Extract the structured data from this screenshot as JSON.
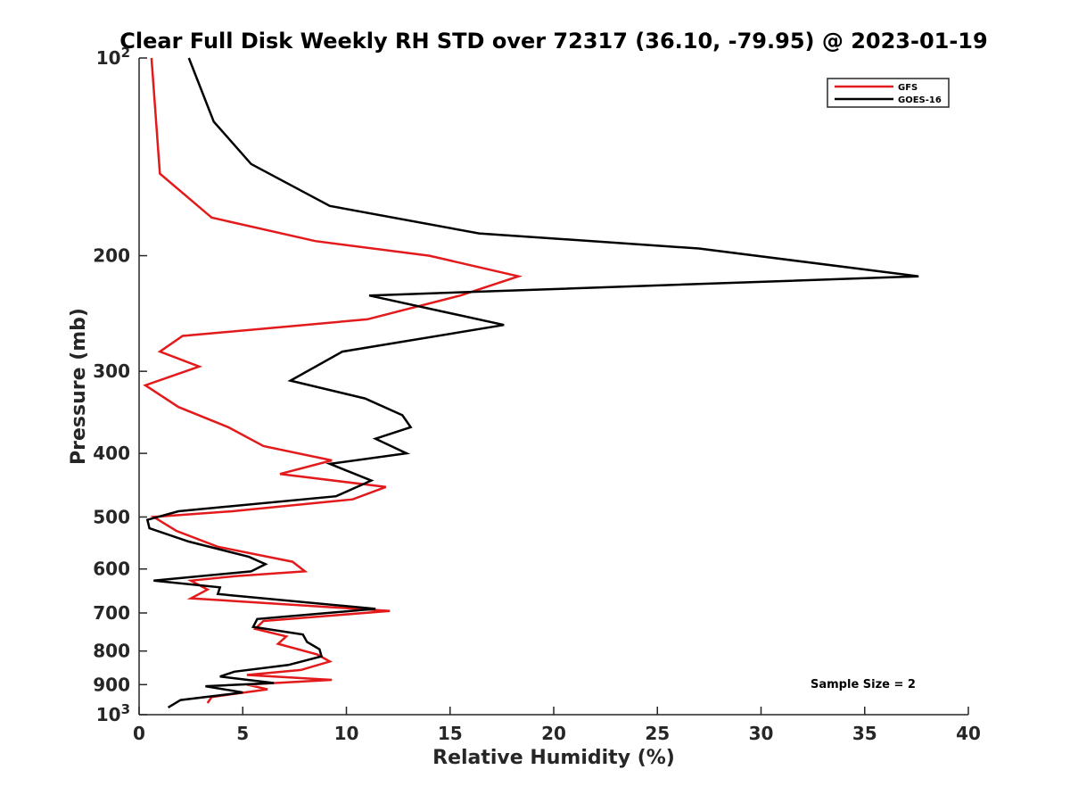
{
  "chart_data": {
    "type": "line",
    "title": "Clear Full Disk Weekly RH STD over 72317 (36.10, -79.95) @ 2023-01-19",
    "xlabel": "Relative Humidity (%)",
    "ylabel": "Pressure (mb)",
    "xlim": [
      0,
      40
    ],
    "ylim": [
      100,
      1000
    ],
    "yscale": "log",
    "y_reversed": true,
    "grid": false,
    "legend_position": "top-right",
    "x_ticks": [
      0,
      5,
      10,
      15,
      20,
      25,
      30,
      35,
      40
    ],
    "y_ticks": [
      100,
      200,
      300,
      400,
      500,
      600,
      700,
      800,
      900,
      1000
    ],
    "y_tick_labels": [
      "10^2",
      "200",
      "300",
      "400",
      "500",
      "600",
      "700",
      "800",
      "900",
      "10^3"
    ],
    "annotation": "Sample Size = 2",
    "series": [
      {
        "name": "GFS",
        "color": "#e31a1c",
        "points": [
          [
            0.6,
            100
          ],
          [
            1.0,
            150
          ],
          [
            3.5,
            175
          ],
          [
            8.5,
            190
          ],
          [
            14,
            200
          ],
          [
            18.3,
            215
          ],
          [
            15.5,
            230
          ],
          [
            11,
            250
          ],
          [
            2.1,
            265
          ],
          [
            1.0,
            280
          ],
          [
            2.9,
            295
          ],
          [
            0.3,
            315
          ],
          [
            1.9,
            340
          ],
          [
            4.3,
            365
          ],
          [
            6.0,
            390
          ],
          [
            9.3,
            410
          ],
          [
            6.8,
            430
          ],
          [
            11.9,
            450
          ],
          [
            10.3,
            470
          ],
          [
            4.5,
            490
          ],
          [
            0.7,
            500
          ],
          [
            1.8,
            525
          ],
          [
            3.8,
            555
          ],
          [
            7.4,
            585
          ],
          [
            8.0,
            605
          ],
          [
            4.7,
            615
          ],
          [
            2.5,
            625
          ],
          [
            3.3,
            645
          ],
          [
            2.5,
            665
          ],
          [
            12.1,
            695
          ],
          [
            6.0,
            720
          ],
          [
            5.6,
            740
          ],
          [
            7.1,
            760
          ],
          [
            6.7,
            780
          ],
          [
            8.6,
            810
          ],
          [
            9.2,
            830
          ],
          [
            7.8,
            855
          ],
          [
            5.2,
            870
          ],
          [
            9.3,
            885
          ],
          [
            5.2,
            900
          ],
          [
            6.2,
            915
          ],
          [
            3.5,
            940
          ],
          [
            3.3,
            960
          ]
        ]
      },
      {
        "name": "GOES-16",
        "color": "#000000",
        "points": [
          [
            2.4,
            100
          ],
          [
            3.6,
            125
          ],
          [
            5.4,
            145
          ],
          [
            9.2,
            168
          ],
          [
            16.4,
            185
          ],
          [
            27,
            195
          ],
          [
            37.6,
            215
          ],
          [
            11.1,
            230
          ],
          [
            17.6,
            255
          ],
          [
            9.8,
            280
          ],
          [
            7.3,
            310
          ],
          [
            10.9,
            330
          ],
          [
            12.7,
            350
          ],
          [
            13.1,
            365
          ],
          [
            11.4,
            380
          ],
          [
            12.9,
            400
          ],
          [
            9.2,
            415
          ],
          [
            11.2,
            440
          ],
          [
            9.5,
            465
          ],
          [
            1.9,
            490
          ],
          [
            0.4,
            505
          ],
          [
            0.5,
            520
          ],
          [
            2.4,
            545
          ],
          [
            5.3,
            575
          ],
          [
            6.1,
            590
          ],
          [
            5.4,
            605
          ],
          [
            0.7,
            625
          ],
          [
            3.9,
            640
          ],
          [
            3.8,
            655
          ],
          [
            11.4,
            690
          ],
          [
            5.7,
            715
          ],
          [
            5.5,
            735
          ],
          [
            7.9,
            755
          ],
          [
            8.1,
            775
          ],
          [
            8.7,
            795
          ],
          [
            8.8,
            815
          ],
          [
            7.2,
            840
          ],
          [
            4.6,
            860
          ],
          [
            3.9,
            875
          ],
          [
            6.5,
            895
          ],
          [
            3.2,
            905
          ],
          [
            5.0,
            925
          ],
          [
            2.0,
            950
          ],
          [
            1.4,
            975
          ]
        ]
      }
    ]
  }
}
